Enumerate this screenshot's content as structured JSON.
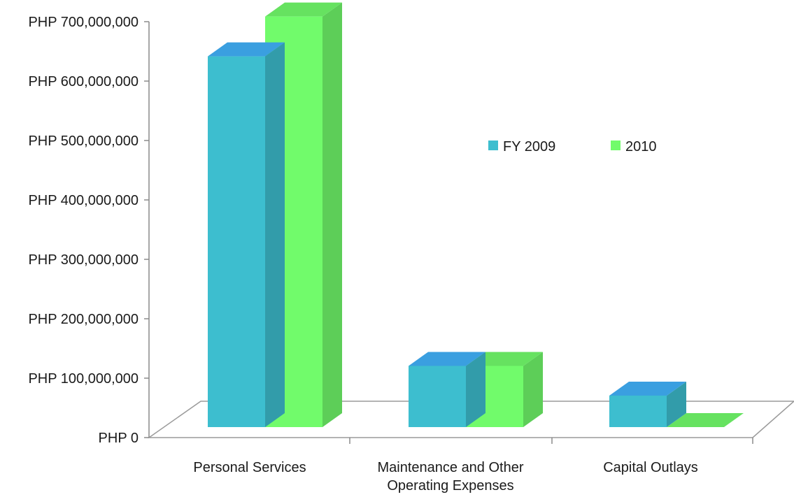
{
  "chart_data": {
    "type": "bar",
    "style": "3d-clustered",
    "categories": [
      "Personal Services",
      "Maintenance and Other Operating Expenses",
      "Capital Outlays"
    ],
    "category_label_lines": [
      [
        "Personal Services"
      ],
      [
        "Maintenance and Other",
        "Operating Expenses"
      ],
      [
        "Capital Outlays"
      ]
    ],
    "series": [
      {
        "name": "FY 2009",
        "color": "#3dbecf",
        "values": [
          624000000,
          103000000,
          53000000
        ]
      },
      {
        "name": "2010",
        "color": "#71fb6b",
        "values": [
          691000000,
          103000000,
          0
        ]
      }
    ],
    "y_ticks": [
      "PHP 0",
      "PHP 100,000,000",
      "PHP 200,000,000",
      "PHP 300,000,000",
      "PHP 400,000,000",
      "PHP 500,000,000",
      "PHP 600,000,000",
      "PHP 700,000,000"
    ],
    "ylim": [
      0,
      700000000
    ],
    "title": "",
    "xlabel": "",
    "ylabel": "",
    "legend_position": "right",
    "grid": false
  }
}
